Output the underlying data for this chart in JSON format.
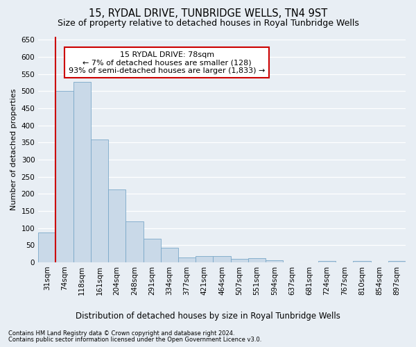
{
  "title": "15, RYDAL DRIVE, TUNBRIDGE WELLS, TN4 9ST",
  "subtitle": "Size of property relative to detached houses in Royal Tunbridge Wells",
  "xlabel": "Distribution of detached houses by size in Royal Tunbridge Wells",
  "ylabel": "Number of detached properties",
  "footnote1": "Contains HM Land Registry data © Crown copyright and database right 2024.",
  "footnote2": "Contains public sector information licensed under the Open Government Licence v3.0.",
  "annotation_title": "15 RYDAL DRIVE: 78sqm",
  "annotation_line1": "← 7% of detached houses are smaller (128)",
  "annotation_line2": "93% of semi-detached houses are larger (1,833) →",
  "bar_labels": [
    "31sqm",
    "74sqm",
    "118sqm",
    "161sqm",
    "204sqm",
    "248sqm",
    "291sqm",
    "334sqm",
    "377sqm",
    "421sqm",
    "464sqm",
    "507sqm",
    "551sqm",
    "594sqm",
    "637sqm",
    "681sqm",
    "724sqm",
    "767sqm",
    "810sqm",
    "854sqm",
    "897sqm"
  ],
  "bar_values": [
    88,
    500,
    528,
    358,
    212,
    120,
    68,
    42,
    15,
    18,
    18,
    10,
    12,
    7,
    0,
    0,
    5,
    0,
    5,
    0,
    5
  ],
  "bar_color": "#c9d9e8",
  "bar_edge_color": "#7aa8c8",
  "highlight_bar_index": 1,
  "highlight_color": "#cc0000",
  "ylim": [
    0,
    660
  ],
  "yticks": [
    0,
    50,
    100,
    150,
    200,
    250,
    300,
    350,
    400,
    450,
    500,
    550,
    600,
    650
  ],
  "background_color": "#e8eef4",
  "plot_bg_color": "#e8eef4",
  "grid_color": "#ffffff",
  "title_fontsize": 10.5,
  "subtitle_fontsize": 9,
  "ylabel_fontsize": 8,
  "tick_fontsize": 7.5,
  "annotation_box_color": "#ffffff",
  "annotation_border_color": "#cc0000",
  "annotation_fontsize": 8
}
